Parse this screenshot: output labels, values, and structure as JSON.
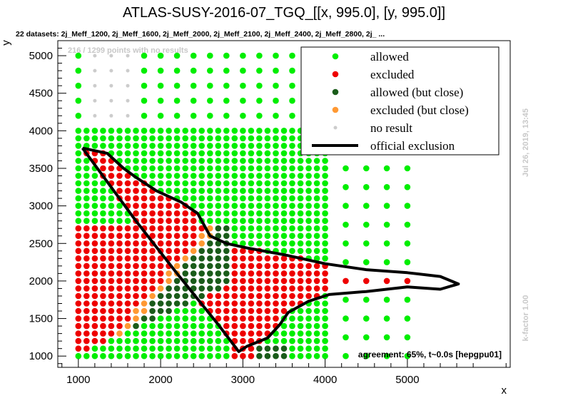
{
  "chart_data": {
    "type": "scatter",
    "title": "ATLAS-SUSY-2016-07_TGQ_[[x, 995.0], [y, 995.0]]",
    "subtitle": "22 datasets: 2j_Meff_1200, 2j_Meff_1600, 2j_Meff_2000, 2j_Meff_2100, 2j_Meff_2400, 2j_Meff_2800, 2j_ ...",
    "no_results_note": "216 / 1299 points with no results",
    "xlabel": "x",
    "ylabel": "y",
    "xlim": [
      750,
      6250
    ],
    "ylim": [
      850,
      5200
    ],
    "x_ticks": [
      1000,
      2000,
      3000,
      4000,
      5000
    ],
    "y_ticks": [
      1000,
      1500,
      2000,
      2500,
      3000,
      3500,
      4000,
      4500,
      5000
    ],
    "legend_position": "top-right",
    "legend": [
      {
        "name": "allowed",
        "kind": "allowed"
      },
      {
        "name": "excluded",
        "kind": "excluded"
      },
      {
        "name": "allowed (but close)",
        "kind": "close_allowed"
      },
      {
        "name": "excluded (but close)",
        "kind": "close_excluded"
      },
      {
        "name": "no result",
        "kind": "noresult"
      },
      {
        "name": "official exclusion",
        "kind": "line"
      }
    ],
    "colors": {
      "allowed": "#00ee00",
      "excluded": "#ee0000",
      "close_allowed": "#1a5c1a",
      "close_excluded": "#ff9933",
      "noresult": "#cccccc",
      "line": "#000000"
    },
    "official_exclusion": [
      [
        1050,
        3770
      ],
      [
        1350,
        3700
      ],
      [
        1550,
        3500
      ],
      [
        1700,
        3380
      ],
      [
        1950,
        3200
      ],
      [
        2250,
        3050
      ],
      [
        2450,
        2900
      ],
      [
        2600,
        2600
      ],
      [
        2800,
        2500
      ],
      [
        3050,
        2440
      ],
      [
        3500,
        2350
      ],
      [
        4000,
        2230
      ],
      [
        4500,
        2150
      ],
      [
        5000,
        2110
      ],
      [
        5400,
        2060
      ],
      [
        5620,
        1960
      ],
      [
        5400,
        1890
      ],
      [
        5000,
        1920
      ],
      [
        4500,
        1860
      ],
      [
        4050,
        1820
      ],
      [
        3800,
        1730
      ],
      [
        3550,
        1580
      ],
      [
        3450,
        1420
      ],
      [
        3300,
        1240
      ],
      [
        3050,
        1130
      ],
      [
        2950,
        1060
      ],
      [
        2700,
        1420
      ],
      [
        2200,
        2100
      ],
      [
        1700,
        2800
      ],
      [
        1050,
        3770
      ]
    ],
    "grid": {
      "low_x_range": [
        1000,
        4000
      ],
      "low_x_step": 100,
      "low_y_range": [
        1000,
        4000
      ],
      "low_y_step": 100,
      "high_x": [
        4250,
        4500,
        4750,
        5000
      ],
      "high_y_step": 250,
      "top_y": [
        4200,
        4400,
        4600,
        4800,
        5000
      ],
      "top_x_step": 200
    },
    "side_text_top": "Jul 26, 2019, 13:45",
    "side_text_bottom": "k-factor 1.00",
    "agreement": "agreement: 65%, t~0.0s [hepgpu01]"
  }
}
